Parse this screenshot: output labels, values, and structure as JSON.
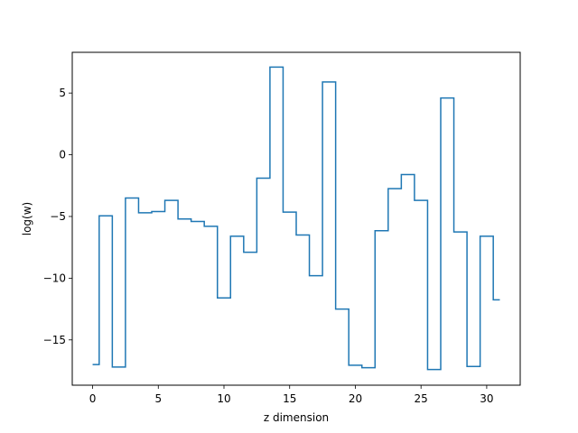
{
  "chart_data": {
    "type": "line",
    "style": "step-mid",
    "xlabel": "z dimension",
    "ylabel": "log(w)",
    "xlim": [
      -1.55,
      32.55
    ],
    "ylim": [
      -18.67,
      8.3
    ],
    "xticks": [
      0,
      5,
      10,
      15,
      20,
      25,
      30
    ],
    "yticks": [
      -15,
      -10,
      -5,
      0,
      5
    ],
    "xtick_labels": [
      "0",
      "5",
      "10",
      "15",
      "20",
      "25",
      "30"
    ],
    "ytick_labels": [
      "−15",
      "−10",
      "−5",
      "0",
      "5"
    ],
    "grid": false,
    "series": [
      {
        "color": "#1f77b4",
        "x": [
          0,
          1,
          2,
          3,
          4,
          5,
          6,
          7,
          8,
          9,
          10,
          11,
          12,
          13,
          14,
          15,
          16,
          17,
          18,
          19,
          20,
          21,
          22,
          23,
          24,
          25,
          26,
          27,
          28,
          29,
          30,
          31
        ],
        "y": [
          -17.0,
          -4.95,
          -17.2,
          -3.5,
          -4.7,
          -4.6,
          -3.7,
          -5.2,
          -5.4,
          -5.8,
          -11.6,
          -6.6,
          -7.9,
          -1.9,
          7.1,
          -4.65,
          -6.5,
          -9.8,
          5.9,
          -12.5,
          -17.05,
          -17.25,
          -6.15,
          -2.75,
          -1.6,
          -3.7,
          -17.4,
          4.6,
          -6.25,
          -17.15,
          -6.6,
          -11.75
        ]
      }
    ]
  }
}
